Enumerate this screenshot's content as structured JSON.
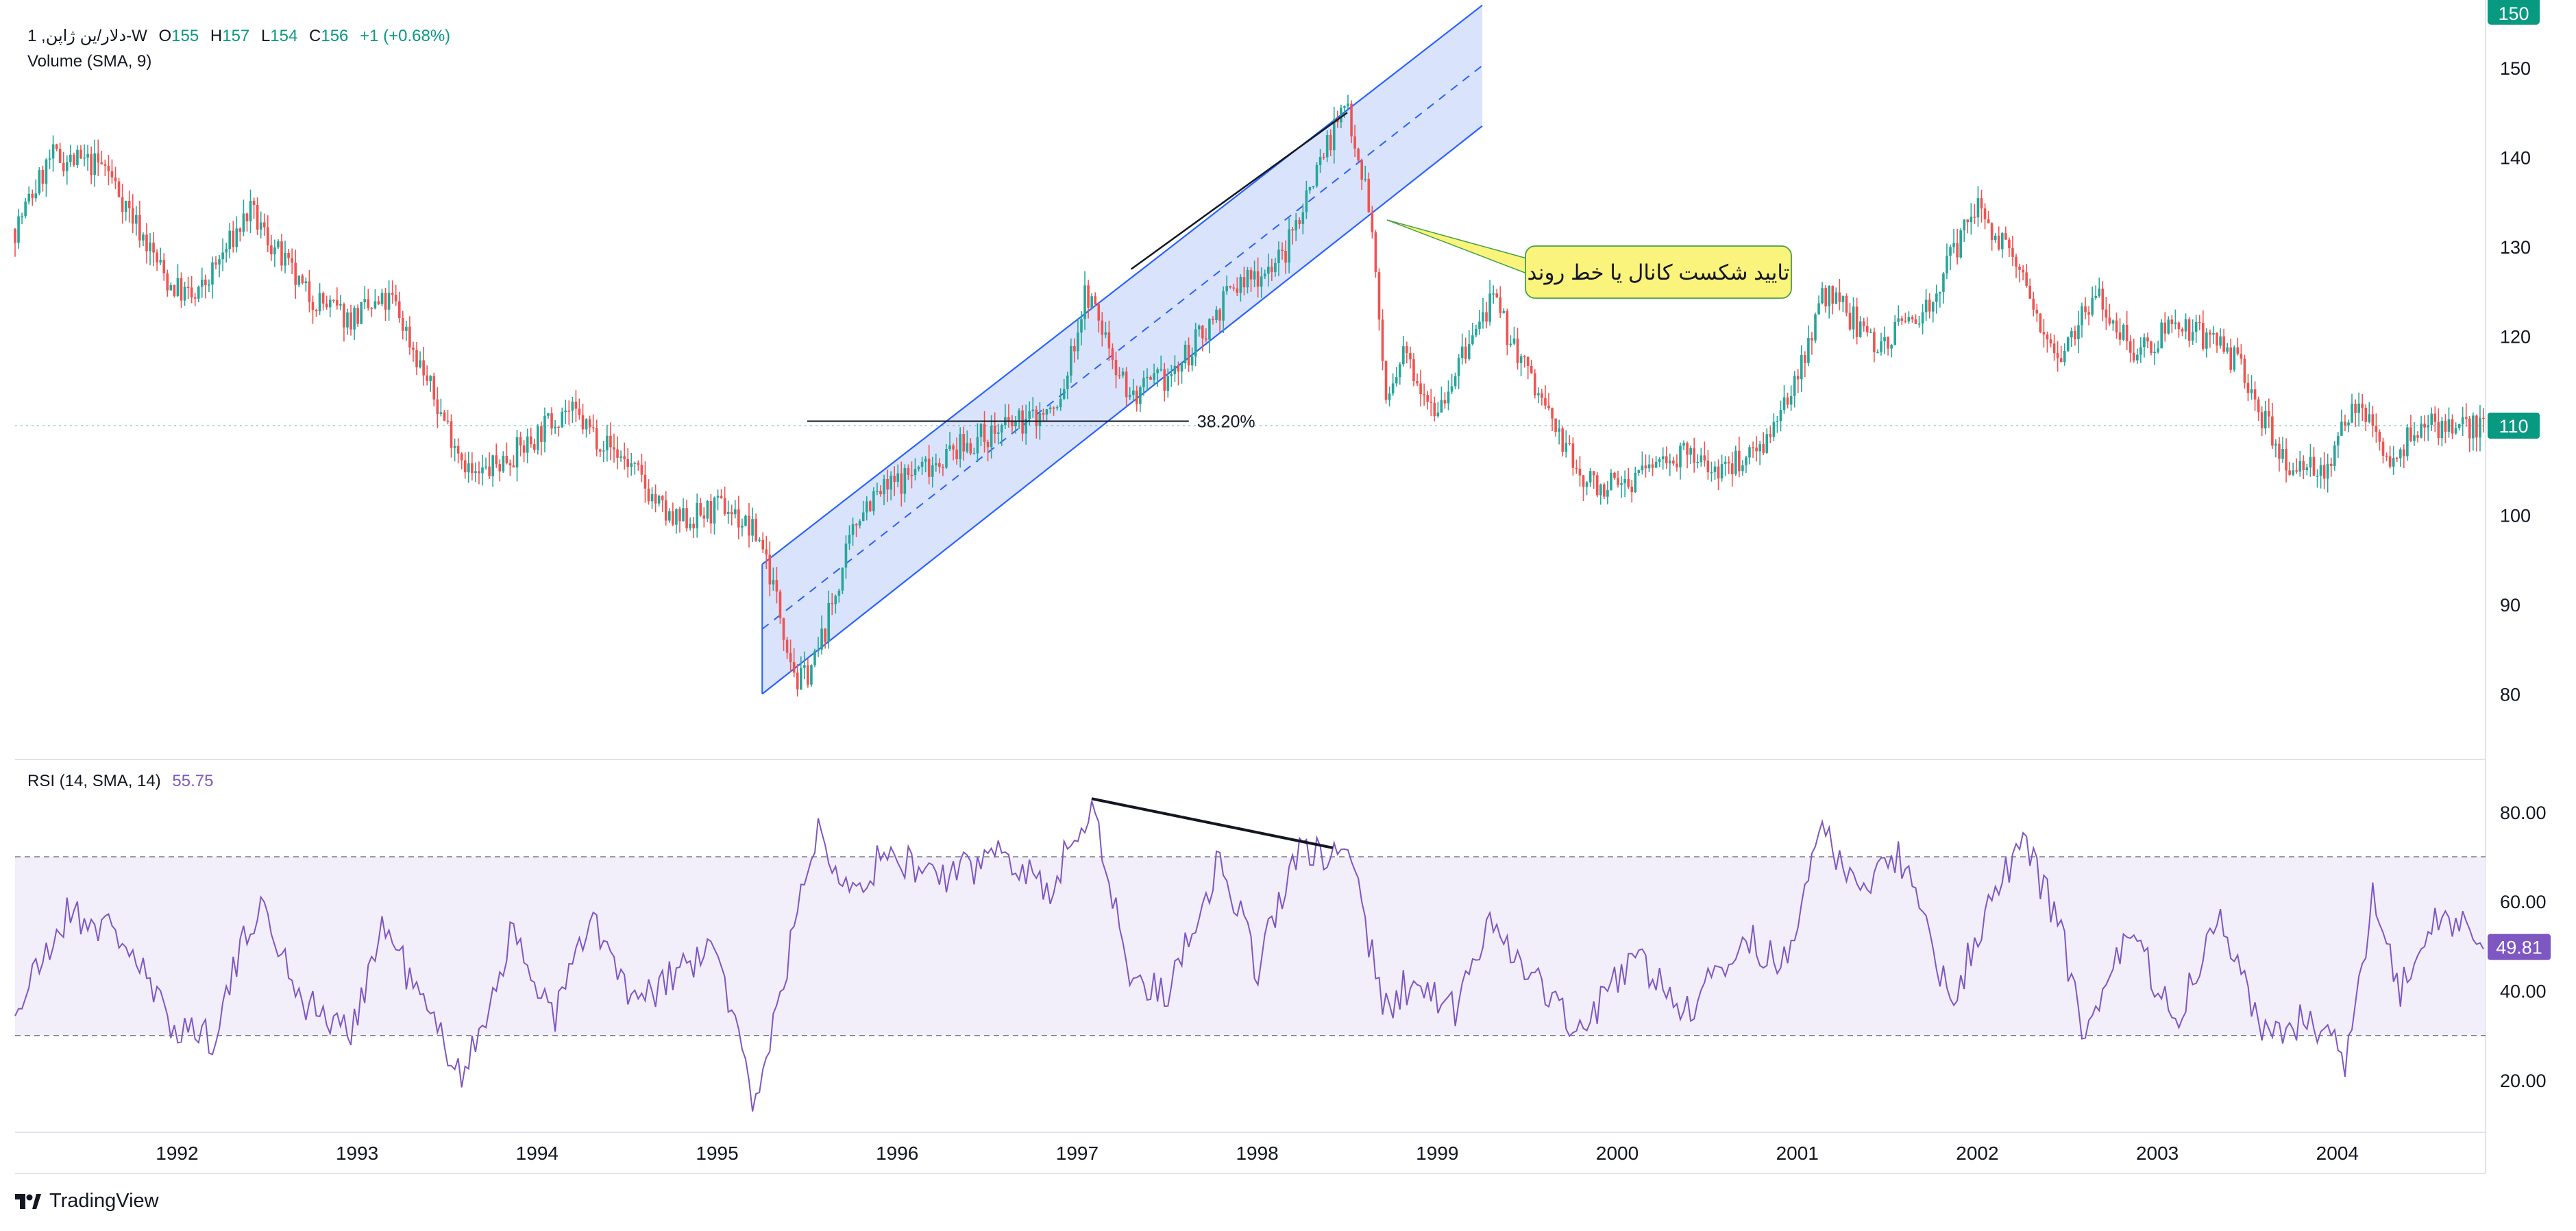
{
  "legend": {
    "symbol": "1 ,دلار/ین ژاپن-W",
    "open_label": "O",
    "open": "155",
    "high_label": "H",
    "high": "157",
    "low_label": "L",
    "low": "154",
    "close_label": "C",
    "close": "156",
    "change": "+1 (+0.68%)",
    "volume": "Volume (SMA, 9)"
  },
  "rsi_legend": {
    "label": "RSI (14, SMA, 14)",
    "value": "55.75"
  },
  "brand": {
    "name": "TradingView"
  },
  "colors": {
    "up": "#26a69a",
    "down": "#ef5350",
    "channel_fill": "#d2defc",
    "channel_line": "#2962ff",
    "rsi_line": "#7e57c2",
    "rsi_band": "#f2eefa",
    "callout": "#faf37c"
  },
  "icons": {
    "logo": "tradingview-logo-icon"
  },
  "chart_data": [
    {
      "type": "candlestick",
      "y_axis": {
        "ticks": [
          80,
          90,
          100,
          110,
          120,
          130,
          140,
          150
        ],
        "top_tick_partial": "150",
        "ylim": [
          77.4,
          157
        ]
      },
      "x_axis": {
        "ticks": [
          "1992",
          "1993",
          "1994",
          "1995",
          "1996",
          "1997",
          "1998",
          "1999",
          "2000",
          "2001",
          "2002",
          "2003",
          "2004"
        ],
        "xlim": [
          1991.1,
          2004.83
        ]
      },
      "last_price_label": "110",
      "trend": {
        "x": [
          1991.1,
          1991.3,
          1991.6,
          1991.95,
          1992.1,
          1992.4,
          1992.7,
          1992.95,
          1993.2,
          1993.45,
          1993.65,
          1993.95,
          1994.15,
          1994.5,
          1994.75,
          1995.05,
          1995.25,
          1995.45,
          1995.55,
          1995.8,
          1996.1,
          1996.5,
          1996.9,
          1997.05,
          1997.3,
          1997.55,
          1997.85,
          1998.15,
          1998.35,
          1998.5,
          1998.62,
          1998.72,
          1998.82,
          1999.0,
          1999.3,
          1999.55,
          1999.8,
          2000.0,
          2000.3,
          2000.6,
          2000.9,
          2001.15,
          2001.45,
          2001.75,
          2002.0,
          2002.2,
          2002.45,
          2002.65,
          2002.9,
          2003.1,
          2003.45,
          2003.7,
          2003.95,
          2004.1,
          2004.3,
          2004.45,
          2004.83
        ],
        "y": [
          132,
          140,
          139,
          126,
          124,
          134,
          125,
          122,
          124,
          112,
          104,
          108,
          112,
          106,
          99,
          101,
          97,
          81,
          84,
          101,
          105,
          109,
          112,
          125,
          113,
          116,
          125,
          129,
          140,
          146,
          135,
          112,
          118,
          112,
          124,
          114,
          104,
          103,
          107,
          105,
          110,
          125,
          119,
          124,
          135,
          128,
          118,
          125,
          118,
          122,
          117,
          106,
          105,
          113,
          106,
          110,
          110
        ]
      },
      "channel": {
        "lower": [
          [
            1995.25,
            80
          ],
          [
            1999.25,
            143.5
          ]
        ],
        "upper": [
          [
            1995.25,
            94.5
          ],
          [
            1999.25,
            157
          ]
        ],
        "midline_dashed": true
      },
      "trend_line": [
        [
          1997.3,
          127.5
        ],
        [
          1998.5,
          145
        ]
      ],
      "retracement": {
        "x": [
          1995.5,
          1997.62
        ],
        "y": 110.5,
        "label": "38.20%"
      },
      "callout": {
        "text": "تایید شکست کانال یا خط روند",
        "anchor": [
          1998.72,
          133
        ]
      }
    },
    {
      "type": "line",
      "series": [
        {
          "name": "RSI (14, SMA, 14)"
        }
      ],
      "y_axis": {
        "ticks": [
          "20.00",
          "40.00",
          "60.00",
          "80.00"
        ],
        "ylim": [
          12,
          88
        ]
      },
      "bands": [
        30,
        70
      ],
      "last_value_label": "49.81",
      "x": [
        1991.1,
        1991.4,
        1991.7,
        1991.95,
        1992.2,
        1992.45,
        1992.7,
        1992.95,
        1993.15,
        1993.4,
        1993.6,
        1993.85,
        1994.1,
        1994.3,
        1994.55,
        1994.8,
        1995.0,
        1995.2,
        1995.3,
        1995.55,
        1995.75,
        1995.95,
        1996.3,
        1996.6,
        1996.85,
        1997.08,
        1997.3,
        1997.5,
        1997.8,
        1998.0,
        1998.2,
        1998.4,
        1998.52,
        1998.7,
        1998.85,
        1999.1,
        1999.3,
        1999.6,
        1999.8,
        2000.1,
        2000.4,
        2000.7,
        2000.95,
        2001.1,
        2001.35,
        2001.6,
        2001.85,
        2002.05,
        2002.25,
        2002.45,
        2002.6,
        2002.85,
        2003.1,
        2003.35,
        2003.6,
        2003.8,
        2004.05,
        2004.2,
        2004.35,
        2004.55,
        2004.83
      ],
      "y": [
        35,
        58,
        52,
        33,
        30,
        60,
        38,
        30,
        55,
        34,
        21,
        52,
        35,
        56,
        36,
        45,
        49,
        15,
        30,
        76,
        64,
        70,
        65,
        72,
        62,
        83,
        42,
        40,
        70,
        45,
        70,
        70,
        72,
        35,
        42,
        35,
        57,
        39,
        31,
        48,
        35,
        52,
        45,
        76,
        64,
        70,
        36,
        58,
        74,
        56,
        28,
        54,
        33,
        58,
        30,
        33,
        25,
        62,
        40,
        56,
        52
      ]
    }
  ]
}
